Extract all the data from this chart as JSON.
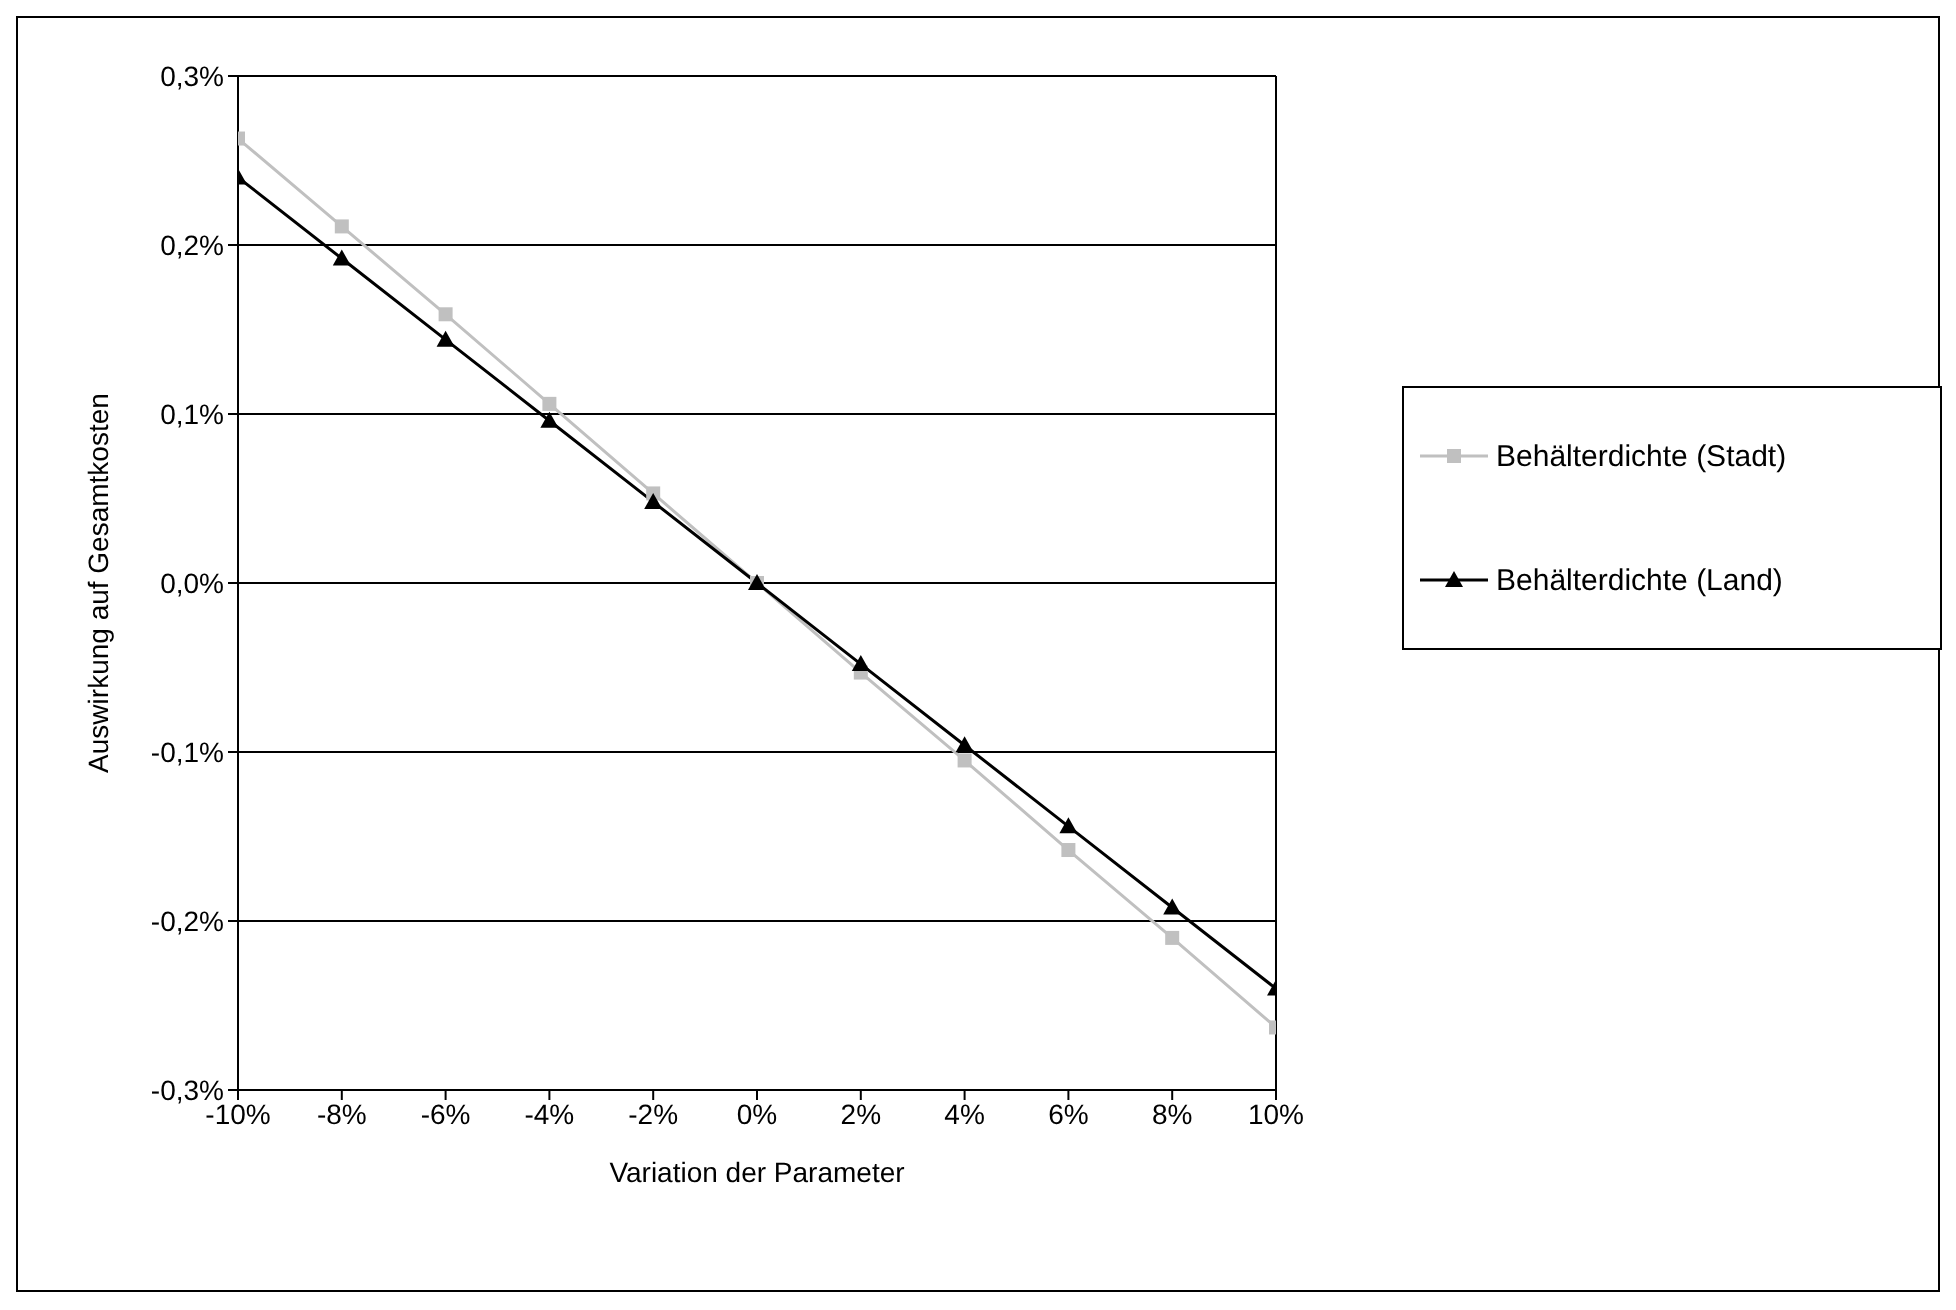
{
  "chart_data": {
    "type": "line",
    "xlabel": "Variation der  Parameter",
    "ylabel": "Auswirkung auf Gesamtkosten",
    "x": [
      -10,
      -8,
      -6,
      -4,
      -2,
      0,
      2,
      4,
      6,
      8,
      10
    ],
    "series": [
      {
        "name": "Behälterdichte (Stadt)",
        "color": "#c0c0c0",
        "marker": "square",
        "values": [
          0.263,
          0.211,
          0.159,
          0.106,
          0.053,
          0,
          -0.053,
          -0.105,
          -0.158,
          -0.21,
          -0.263
        ]
      },
      {
        "name": "Behälterdichte (Land)",
        "color": "#000000",
        "marker": "triangle",
        "values": [
          0.24,
          0.192,
          0.144,
          0.096,
          0.048,
          0,
          -0.048,
          -0.096,
          -0.144,
          -0.192,
          -0.24
        ]
      }
    ],
    "xlim": [
      -10,
      10
    ],
    "xticks": [
      {
        "value": -10,
        "label": "-10%"
      },
      {
        "value": -8,
        "label": "-8%"
      },
      {
        "value": -6,
        "label": "-6%"
      },
      {
        "value": -4,
        "label": "-4%"
      },
      {
        "value": -2,
        "label": "-2%"
      },
      {
        "value": 0,
        "label": "0%"
      },
      {
        "value": 2,
        "label": "2%"
      },
      {
        "value": 4,
        "label": "4%"
      },
      {
        "value": 6,
        "label": "6%"
      },
      {
        "value": 8,
        "label": "8%"
      },
      {
        "value": 10,
        "label": "10%"
      }
    ],
    "ylim": [
      -0.3,
      0.3
    ],
    "yticks": [
      {
        "value": -0.3,
        "label": "-0,3%"
      },
      {
        "value": -0.2,
        "label": "-0,2%"
      },
      {
        "value": -0.1,
        "label": "-0,1%"
      },
      {
        "value": 0,
        "label": "0,0%"
      },
      {
        "value": 0.1,
        "label": "0,1%"
      },
      {
        "value": 0.2,
        "label": "0,2%"
      },
      {
        "value": 0.3,
        "label": "0,3%"
      }
    ],
    "grid": "y",
    "legend": "right",
    "line_style": "solid"
  }
}
